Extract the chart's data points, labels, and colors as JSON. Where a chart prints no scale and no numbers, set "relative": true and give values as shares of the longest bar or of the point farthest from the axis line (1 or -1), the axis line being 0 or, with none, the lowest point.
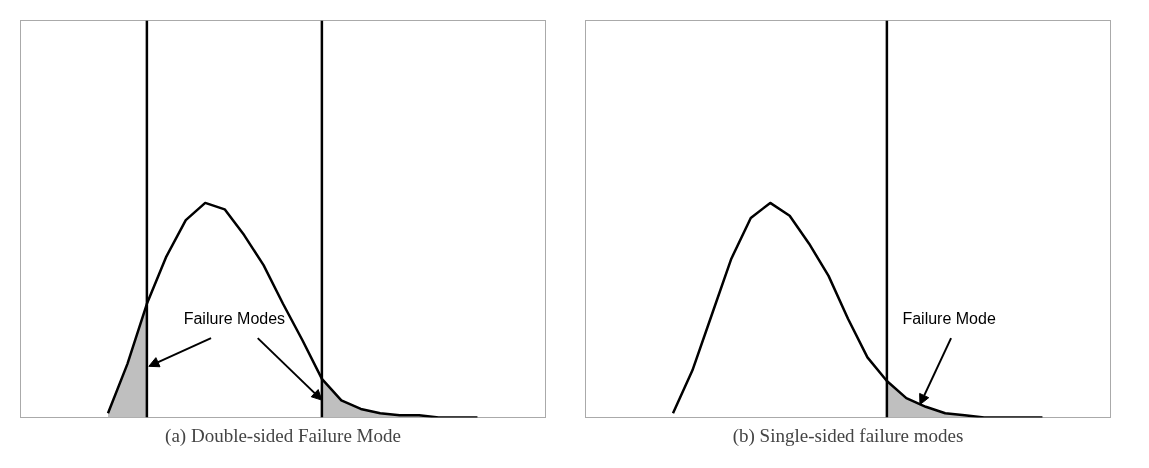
{
  "chart_data": [
    {
      "type": "line",
      "title": "(a) Double-sided Failure Mode",
      "relative": true,
      "tick_labels": false,
      "grid": false,
      "categories": [
        null,
        null,
        null,
        null,
        null,
        null,
        null,
        null,
        null,
        null,
        null,
        null,
        null,
        null,
        null,
        null,
        null,
        null,
        null,
        null,
        null,
        null,
        null,
        null,
        null,
        null,
        null
      ],
      "series": [
        {
          "type": "area",
          "color": "#bfbfbf",
          "values": [
            null,
            null,
            null,
            null,
            0.02,
            0.25,
            0.53,
            null,
            null,
            null,
            null,
            null,
            null,
            null,
            null,
            null,
            null,
            null,
            null,
            null,
            null,
            null,
            null,
            null,
            null,
            null,
            null
          ]
        },
        {
          "type": "area",
          "color": "#bfbfbf",
          "values": [
            null,
            null,
            null,
            null,
            null,
            null,
            null,
            null,
            null,
            null,
            null,
            null,
            null,
            null,
            null,
            0.18,
            0.08,
            0.04,
            0.02,
            0.01,
            0.01,
            0,
            0,
            0,
            null,
            null,
            null
          ]
        },
        {
          "color": "#000000",
          "values": [
            null,
            null,
            null,
            null,
            0.02,
            0.25,
            0.53,
            0.75,
            0.92,
            1.0,
            0.97,
            0.85,
            0.71,
            0.53,
            0.36,
            0.18,
            0.08,
            0.04,
            0.02,
            0.01,
            0.01,
            0,
            0,
            0,
            null,
            null,
            null
          ]
        }
      ],
      "annotations": [
        "Failure Modes"
      ]
    },
    {
      "type": "line",
      "title": "(b) Single-sided failure modes",
      "relative": true,
      "tick_labels": false,
      "grid": false,
      "categories": [
        null,
        null,
        null,
        null,
        null,
        null,
        null,
        null,
        null,
        null,
        null,
        null,
        null,
        null,
        null,
        null,
        null,
        null,
        null,
        null,
        null,
        null,
        null,
        null,
        null,
        null,
        null
      ],
      "series": [
        {
          "type": "area",
          "color": "#bfbfbf",
          "values": [
            null,
            null,
            null,
            null,
            null,
            null,
            null,
            null,
            null,
            null,
            null,
            null,
            null,
            null,
            null,
            0.17,
            0.09,
            0.05,
            0.02,
            0.01,
            0,
            0,
            0,
            0,
            null,
            null,
            null
          ]
        },
        {
          "color": "#000000",
          "values": [
            null,
            null,
            null,
            null,
            0.02,
            0.22,
            0.48,
            0.74,
            0.93,
            1.0,
            0.94,
            0.81,
            0.66,
            0.46,
            0.28,
            0.17,
            0.09,
            0.05,
            0.02,
            0.01,
            0,
            0,
            0,
            0,
            null,
            null,
            null
          ]
        }
      ],
      "annotations": [
        "Failure Mode"
      ]
    }
  ]
}
